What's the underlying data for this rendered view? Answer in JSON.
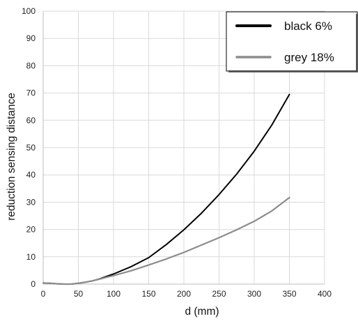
{
  "chart_data": {
    "type": "line",
    "xlabel": "d (mm)",
    "ylabel": "reduction sensing distance",
    "xlim": [
      0,
      400
    ],
    "ylim": [
      0,
      100
    ],
    "x_ticks": [
      0,
      50,
      100,
      150,
      200,
      250,
      300,
      350,
      400
    ],
    "y_ticks": [
      0,
      10,
      20,
      30,
      40,
      50,
      60,
      70,
      80,
      90,
      100
    ],
    "grid": true,
    "legend_position": "top-right",
    "series": [
      {
        "name": "black 6%",
        "color": "#000000",
        "x": [
          0,
          10,
          20,
          30,
          40,
          50,
          60,
          70,
          80,
          90,
          100,
          125,
          150,
          175,
          200,
          225,
          250,
          275,
          300,
          325,
          350
        ],
        "y": [
          0.4,
          0.3,
          0.1,
          0.0,
          0.0,
          0.3,
          0.7,
          1.2,
          1.9,
          2.8,
          3.7,
          6.4,
          9.7,
          14.5,
          19.9,
          26.0,
          32.8,
          40.3,
          48.7,
          58.3,
          69.5
        ]
      },
      {
        "name": "grey 18%",
        "color": "#8c8c8c",
        "x": [
          0,
          10,
          20,
          30,
          40,
          50,
          60,
          70,
          80,
          90,
          100,
          125,
          150,
          175,
          200,
          225,
          250,
          275,
          300,
          325,
          350
        ],
        "y": [
          0.4,
          0.3,
          0.1,
          0.0,
          0.0,
          0.3,
          0.7,
          1.2,
          1.8,
          2.5,
          3.1,
          4.9,
          7.0,
          9.2,
          11.6,
          14.3,
          17.0,
          19.9,
          23.0,
          26.8,
          31.7
        ]
      }
    ]
  }
}
